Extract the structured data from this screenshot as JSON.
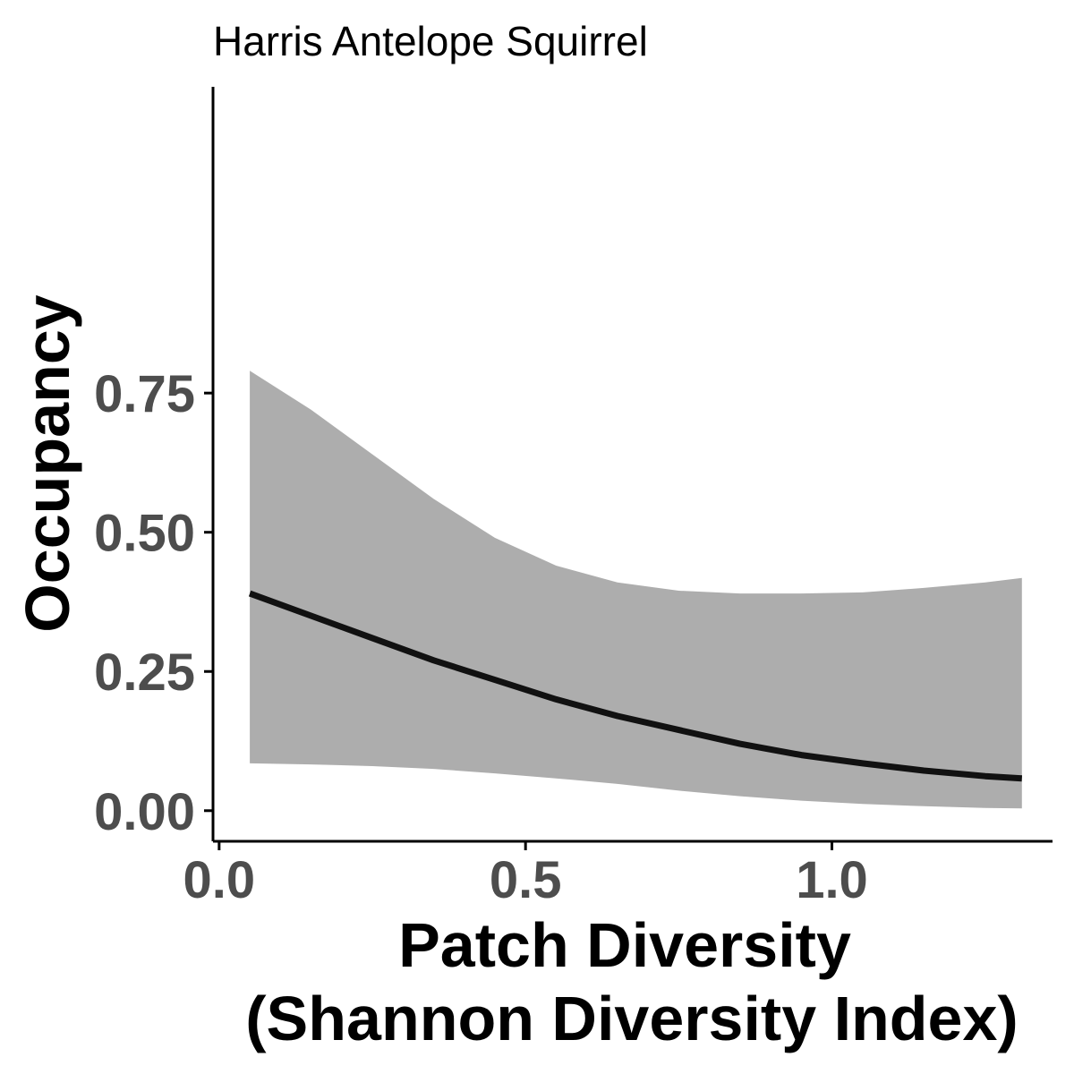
{
  "chart_data": {
    "type": "line",
    "title": "Harris Antelope Squirrel",
    "xlabel": [
      "Patch Diversity",
      "(Shannon Diversity Index)"
    ],
    "ylabel": "Occupancy",
    "xlim": [
      -0.01,
      1.36
    ],
    "ylim": [
      -0.055,
      1.3
    ],
    "x_ticks": [
      0.0,
      0.5,
      1.0
    ],
    "x_tick_labels": [
      "0.0",
      "0.5",
      "1.0"
    ],
    "y_ticks": [
      0.0,
      0.25,
      0.5,
      0.75
    ],
    "y_tick_labels": [
      "0.00",
      "0.25",
      "0.50",
      "0.75"
    ],
    "grid": false,
    "colors": {
      "line": "#111111",
      "ribbon": "#adadad"
    },
    "series": [
      {
        "x": [
          0.05,
          0.15,
          0.25,
          0.35,
          0.45,
          0.55,
          0.65,
          0.75,
          0.85,
          0.95,
          1.05,
          1.15,
          1.25,
          1.31
        ],
        "y": [
          0.39,
          0.35,
          0.31,
          0.27,
          0.235,
          0.2,
          0.17,
          0.145,
          0.12,
          0.1,
          0.085,
          0.072,
          0.062,
          0.058
        ],
        "lower": [
          0.085,
          0.083,
          0.08,
          0.075,
          0.067,
          0.058,
          0.048,
          0.036,
          0.026,
          0.018,
          0.012,
          0.008,
          0.005,
          0.004
        ],
        "upper": [
          0.79,
          0.72,
          0.64,
          0.56,
          0.49,
          0.44,
          0.41,
          0.395,
          0.39,
          0.39,
          0.392,
          0.4,
          0.41,
          0.418
        ]
      }
    ]
  }
}
